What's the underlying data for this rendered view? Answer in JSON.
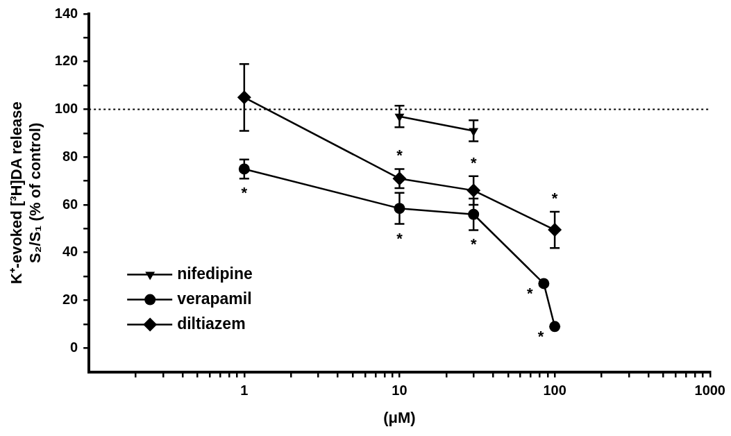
{
  "chart_data": {
    "type": "line",
    "xlabel": "(μM)",
    "ylabel": "K⁺-evoked [³H]DA release\nS₂/S₁ (% of control)",
    "log": "x",
    "xlim": [
      0.1,
      1000
    ],
    "ylim": [
      -10,
      140
    ],
    "xticks": [
      {
        "value": 0.2,
        "label": null
      },
      {
        "value": 0.3,
        "label": null
      },
      {
        "value": 0.4,
        "label": null
      },
      {
        "value": 0.5,
        "label": null
      },
      {
        "value": 0.6,
        "label": null
      },
      {
        "value": 0.7,
        "label": null
      },
      {
        "value": 0.8,
        "label": null
      },
      {
        "value": 0.9,
        "label": null
      },
      1,
      {
        "value": 2,
        "label": null
      },
      {
        "value": 3,
        "label": null
      },
      {
        "value": 4,
        "label": null
      },
      {
        "value": 5,
        "label": null
      },
      {
        "value": 6,
        "label": null
      },
      {
        "value": 7,
        "label": null
      },
      {
        "value": 8,
        "label": null
      },
      {
        "value": 9,
        "label": null
      },
      10,
      {
        "value": 20,
        "label": null
      },
      {
        "value": 30,
        "label": null
      },
      {
        "value": 40,
        "label": null
      },
      {
        "value": 50,
        "label": null
      },
      {
        "value": 60,
        "label": null
      },
      {
        "value": 70,
        "label": null
      },
      {
        "value": 80,
        "label": null
      },
      {
        "value": 90,
        "label": null
      },
      100,
      {
        "value": 200,
        "label": null
      },
      {
        "value": 300,
        "label": null
      },
      {
        "value": 400,
        "label": null
      },
      {
        "value": 500,
        "label": null
      },
      {
        "value": 600,
        "label": null
      },
      {
        "value": 700,
        "label": null
      },
      {
        "value": 800,
        "label": null
      },
      {
        "value": 900,
        "label": null
      },
      1000
    ],
    "yticks": [
      0,
      {
        "value": 10,
        "label": null
      },
      20,
      {
        "value": 30,
        "label": null
      },
      40,
      {
        "value": 50,
        "label": null
      },
      60,
      {
        "value": 70,
        "label": null
      },
      80,
      {
        "value": 90,
        "label": null
      },
      100,
      {
        "value": 110,
        "label": null
      },
      120,
      {
        "value": 130,
        "label": null
      },
      140
    ],
    "legend": "bottom left",
    "line_style": "solid",
    "series": [
      {
        "name": "nifedipine",
        "color": "#000000",
        "marker": "triangle-down",
        "x": [
          10,
          30
        ],
        "values": [
          97,
          91
        ],
        "errors": [
          4.5,
          4.4
        ]
      },
      {
        "name": "verapamil",
        "color": "#000000",
        "marker": "circle",
        "x": [
          1,
          10,
          30,
          85,
          100
        ],
        "values": [
          75,
          58.5,
          56,
          27,
          9
        ],
        "errors": [
          4,
          6.5,
          6.6,
          null,
          null
        ]
      },
      {
        "name": "diltiazem",
        "color": "#000000",
        "marker": "diamond",
        "x": [
          1,
          10,
          30,
          100
        ],
        "values": [
          105,
          71,
          66,
          49.5
        ],
        "errors": [
          14,
          4,
          6,
          7.6
        ]
      }
    ],
    "ref_lines": [
      {
        "axis": "y",
        "value": 100,
        "label": null,
        "line_style": "dotted",
        "color": "#000000"
      }
    ],
    "annotations": [
      {
        "text": "*",
        "x": 1,
        "y": 71
      },
      {
        "text": "*",
        "x": 10,
        "y": 75
      },
      {
        "text": "*",
        "x": 10,
        "y": 52
      },
      {
        "text": "*",
        "x": 30,
        "y": 72
      },
      {
        "text": "*",
        "x": 30,
        "y": 49.4
      },
      {
        "text": "*",
        "x": 100,
        "y": 57.1
      },
      {
        "text": "*",
        "x": 85,
        "y": 27
      },
      {
        "text": "*",
        "x": 100,
        "y": 9
      }
    ]
  }
}
